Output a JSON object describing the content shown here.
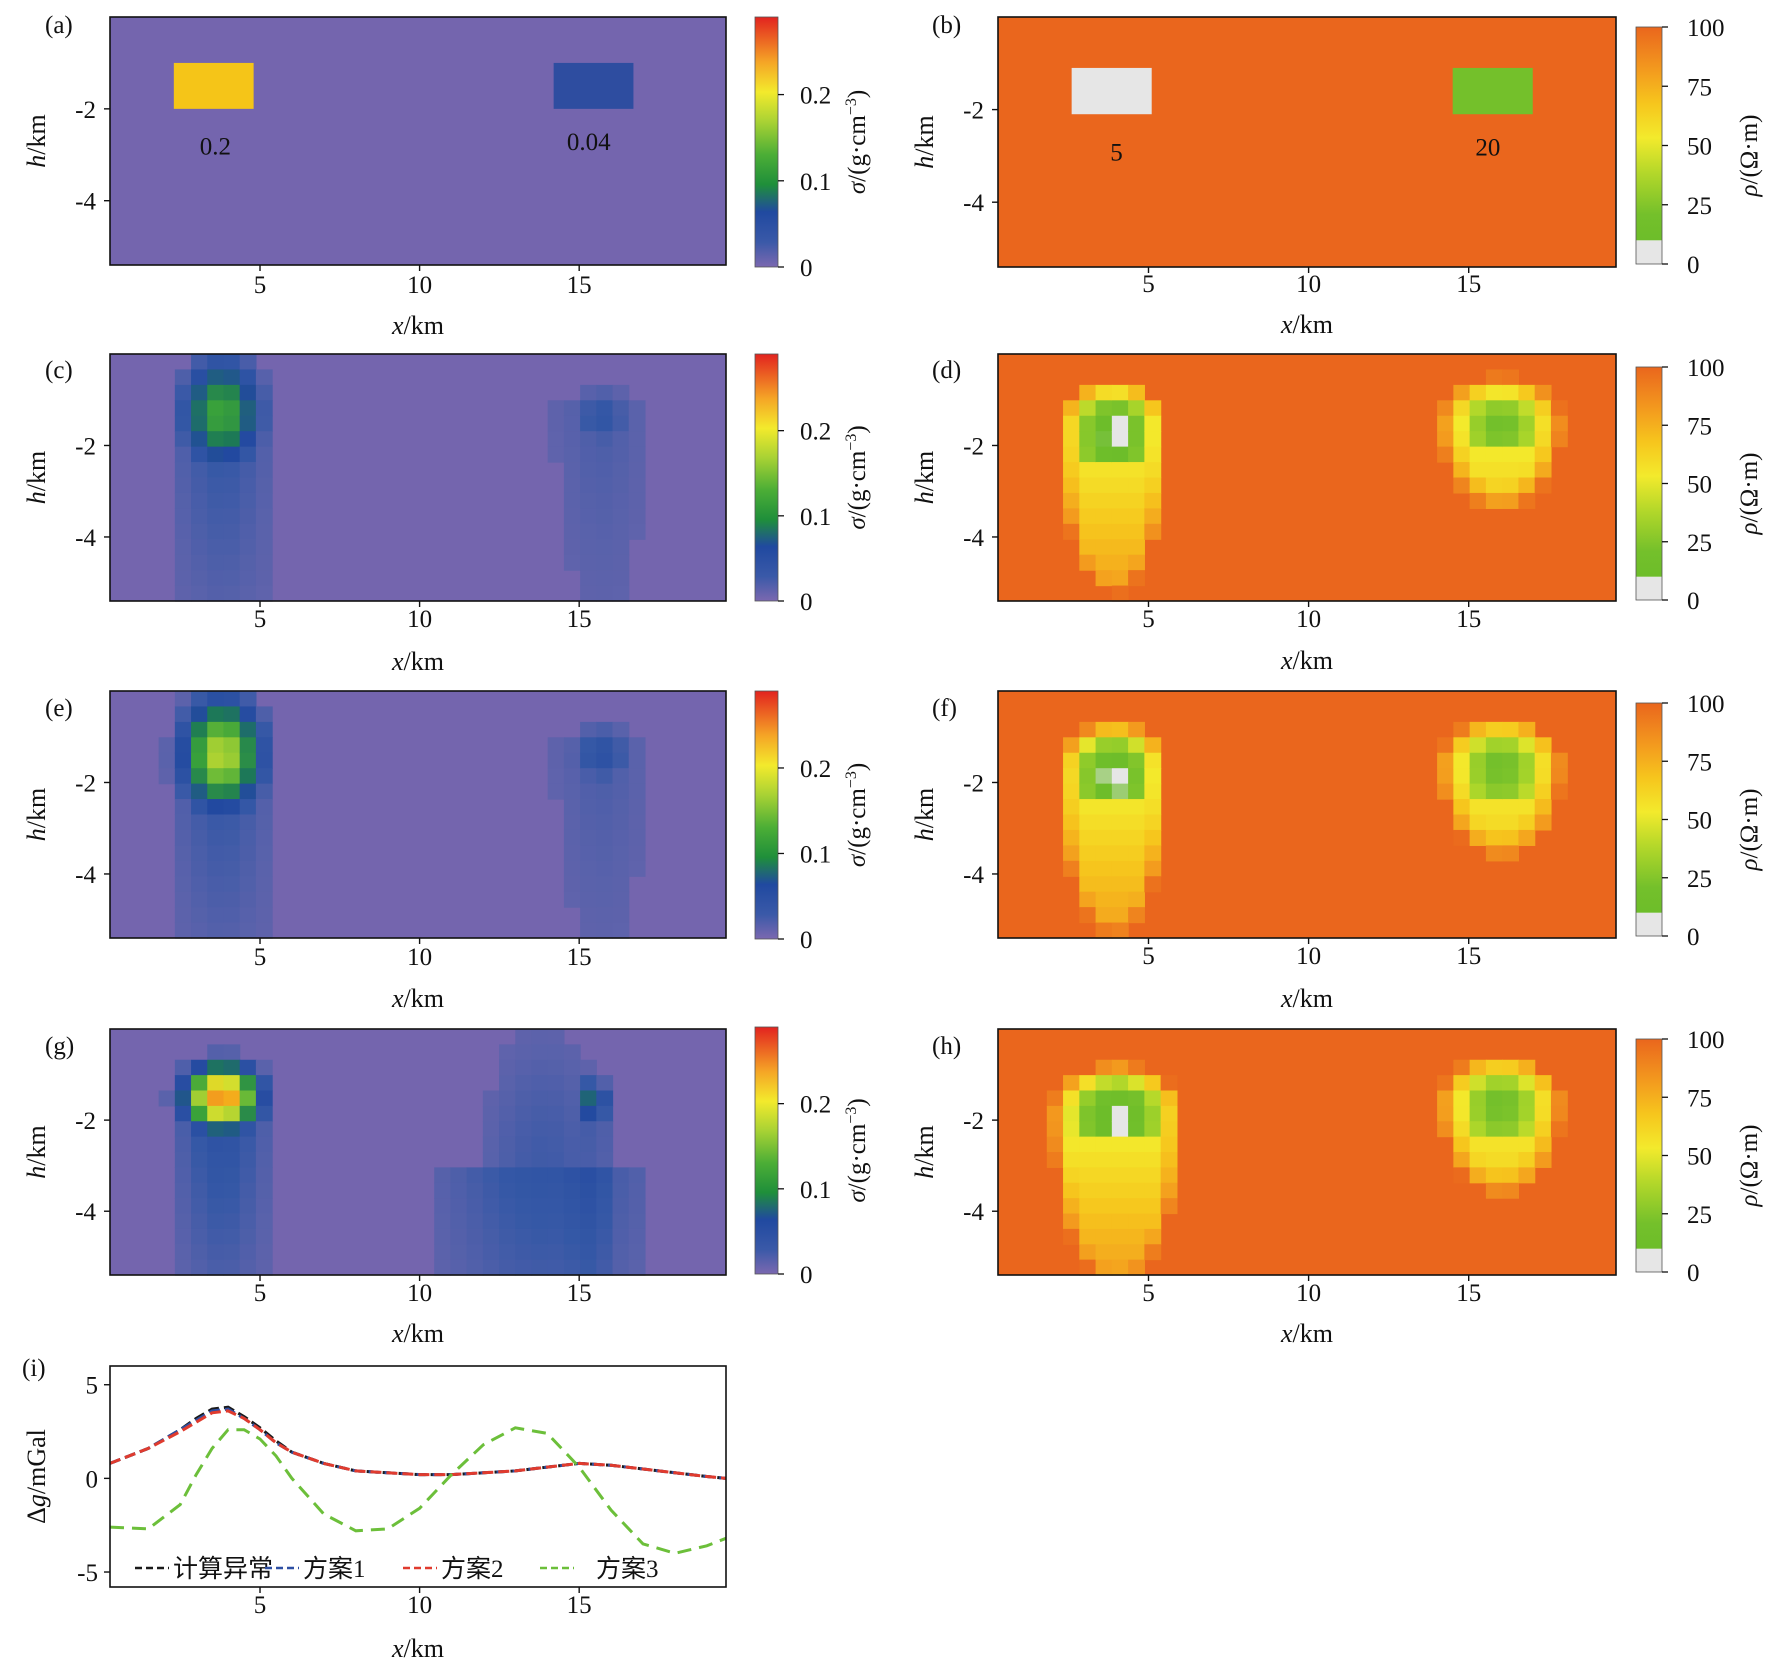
{
  "figure": {
    "panel_labels": [
      "(a)",
      "(b)",
      "(c)",
      "(d)",
      "(e)",
      "(f)",
      "(g)",
      "(h)",
      "(i)"
    ],
    "x_axis_label_italic": "x",
    "x_axis_label_unit": "/km",
    "depth_axis_label_italic": "h",
    "depth_axis_label_unit": "/km",
    "density_colorbar_label_italic": "σ",
    "density_colorbar_label_unit": "/(g·cm",
    "density_colorbar_label_exp": "−3",
    "density_colorbar_label_close": ")",
    "resistivity_colorbar_label_italic": "ρ",
    "resistivity_colorbar_label_unit": "/(Ω·m)",
    "gravity_axis_label_prefix": "Δ",
    "gravity_axis_label_italic": "g",
    "gravity_axis_label_unit": "/mGal",
    "x_ticks": [
      "5",
      "10",
      "15"
    ],
    "depth_ticks": [
      "-2",
      "-4"
    ],
    "density_colorbar_ticks": [
      "0",
      "0.1",
      "0.2"
    ],
    "resistivity_colorbar_ticks": [
      "0",
      "25",
      "50",
      "75",
      "100"
    ],
    "gravity_ticks": [
      "5",
      "0",
      "-5"
    ]
  },
  "chart_data": [
    {
      "panel": "(a)",
      "type": "heatmap",
      "quantity": "density",
      "xlim": [
        0.3,
        19.6
      ],
      "ylim": [
        -5.4,
        0
      ],
      "colorbar_range": [
        0,
        0.29
      ],
      "background_value": 0.01,
      "annotations": [
        {
          "text": "0.2",
          "x": 3.6,
          "y": -2.8
        },
        {
          "text": "0.04",
          "x": 15.3,
          "y": -2.7
        }
      ],
      "bodies": [
        {
          "x0": 2.3,
          "x1": 4.8,
          "y0": -1.0,
          "y1": -2.0,
          "value": 0.2
        },
        {
          "x0": 14.2,
          "x1": 16.7,
          "y0": -1.0,
          "y1": -2.0,
          "value": 0.04
        }
      ],
      "colors": {
        "background": "#7465ae",
        "body_left": "#f5c518",
        "body_right": "#2e4da0"
      }
    },
    {
      "panel": "(b)",
      "type": "heatmap",
      "quantity": "resistivity",
      "xlim": [
        0.3,
        19.6
      ],
      "ylim": [
        -5.4,
        0
      ],
      "colorbar_range": [
        0,
        100
      ],
      "background_value": 100,
      "annotations": [
        {
          "text": "5",
          "x": 4.0,
          "y": -2.9
        },
        {
          "text": "20",
          "x": 15.6,
          "y": -2.8
        }
      ],
      "bodies": [
        {
          "x0": 2.6,
          "x1": 5.1,
          "y0": -1.1,
          "y1": -2.1,
          "value": 5
        },
        {
          "x0": 14.5,
          "x1": 17.0,
          "y0": -1.1,
          "y1": -2.1,
          "value": 20
        }
      ],
      "colors": {
        "background": "#ea661d",
        "body_left": "#e6e6e6",
        "body_right": "#74c02b"
      }
    },
    {
      "panel": "(c)",
      "type": "heatmap",
      "quantity": "density",
      "xlim": [
        0.3,
        19.6
      ],
      "ylim": [
        -5.4,
        0
      ],
      "colorbar_range": [
        0,
        0.29
      ],
      "background_value": 0.01,
      "anomalies": [
        {
          "x": 3.8,
          "y": -1.3,
          "peak": 0.12,
          "sx": 1.3,
          "sy": 1.4,
          "tail": 0.03
        },
        {
          "x": 15.7,
          "y": -1.4,
          "peak": 0.04,
          "sx": 1.2,
          "sy": 0.9,
          "tail": 0.015
        }
      ],
      "colors": {
        "background": "#7465ae"
      }
    },
    {
      "panel": "(d)",
      "type": "heatmap",
      "quantity": "resistivity",
      "xlim": [
        0.3,
        19.6
      ],
      "ylim": [
        -5.4,
        0
      ],
      "colorbar_range": [
        0,
        100
      ],
      "background_value": 92,
      "anomalies": [
        {
          "x": 3.9,
          "y": -1.6,
          "min": 5,
          "w": 3.0,
          "h": 4.6
        },
        {
          "x": 16.0,
          "y": -1.5,
          "min": 22,
          "w": 3.4,
          "h": 2.4
        }
      ],
      "colors": {
        "background": "#ea661d"
      }
    },
    {
      "panel": "(e)",
      "type": "heatmap",
      "quantity": "density",
      "xlim": [
        0.3,
        19.6
      ],
      "ylim": [
        -5.4,
        0
      ],
      "colorbar_range": [
        0,
        0.29
      ],
      "background_value": 0.01,
      "anomalies": [
        {
          "x": 3.8,
          "y": -1.4,
          "peak": 0.17,
          "sx": 1.3,
          "sy": 1.4,
          "tail": 0.03
        },
        {
          "x": 15.7,
          "y": -1.4,
          "peak": 0.045,
          "sx": 1.2,
          "sy": 0.9,
          "tail": 0.015
        }
      ],
      "colors": {
        "background": "#7465ae"
      }
    },
    {
      "panel": "(f)",
      "type": "heatmap",
      "quantity": "resistivity",
      "xlim": [
        0.3,
        19.6
      ],
      "ylim": [
        -5.4,
        0
      ],
      "colorbar_range": [
        0,
        100
      ],
      "background_value": 92,
      "anomalies": [
        {
          "x": 3.9,
          "y": -1.7,
          "min": 5,
          "w": 3.0,
          "h": 4.6
        },
        {
          "x": 16.0,
          "y": -1.6,
          "min": 22,
          "w": 3.4,
          "h": 2.6
        }
      ],
      "colors": {
        "background": "#ea661d"
      }
    },
    {
      "panel": "(g)",
      "type": "heatmap",
      "quantity": "density",
      "xlim": [
        0.3,
        19.6
      ],
      "ylim": [
        -5.4,
        0
      ],
      "colorbar_range": [
        0,
        0.29
      ],
      "background_value": 0.01,
      "anomalies": [
        {
          "x": 3.8,
          "y": -1.5,
          "peak": 0.25,
          "sx": 1.2,
          "sy": 0.8,
          "tail": 0.04
        },
        {
          "x": 15.4,
          "y": -1.6,
          "peak": 0.08,
          "sx": 0.6,
          "sy": 0.6,
          "tail": 0.02
        },
        {
          "x": 13.9,
          "y": -3.2,
          "peak": 0.03,
          "sx": 2.7,
          "sy": 4.8,
          "tail": 0.03
        }
      ],
      "colors": {
        "background": "#7465ae"
      }
    },
    {
      "panel": "(h)",
      "type": "heatmap",
      "quantity": "resistivity",
      "xlim": [
        0.3,
        19.6
      ],
      "ylim": [
        -5.4,
        0
      ],
      "colorbar_range": [
        0,
        100
      ],
      "background_value": 92,
      "anomalies": [
        {
          "x": 4.0,
          "y": -1.8,
          "min": 5,
          "w": 3.6,
          "h": 4.8
        },
        {
          "x": 16.0,
          "y": -1.6,
          "min": 22,
          "w": 3.4,
          "h": 2.6
        }
      ],
      "colors": {
        "background": "#ea661d"
      }
    },
    {
      "panel": "(i)",
      "type": "line",
      "xlabel": "x/km",
      "ylabel": "Δg/mGal",
      "xlim": [
        0.3,
        19.6
      ],
      "ylim": [
        -5.8,
        6
      ],
      "x": [
        0.3,
        1.5,
        2.5,
        3.0,
        3.5,
        4.0,
        4.5,
        5.0,
        5.5,
        6.0,
        7.0,
        8.0,
        9.0,
        10.0,
        11.0,
        12.0,
        13.0,
        14.0,
        15.0,
        16.0,
        17.0,
        18.0,
        19.0,
        19.6
      ],
      "series": [
        {
          "name": "计算异常",
          "color": "#1a1a1a",
          "values": [
            0.8,
            1.6,
            2.6,
            3.2,
            3.7,
            3.8,
            3.3,
            2.7,
            2.0,
            1.4,
            0.8,
            0.4,
            0.3,
            0.2,
            0.2,
            0.3,
            0.4,
            0.6,
            0.8,
            0.7,
            0.5,
            0.3,
            0.1,
            0.0
          ]
        },
        {
          "name": "方案1",
          "color": "#2d4fa3",
          "values": [
            0.8,
            1.6,
            2.6,
            3.1,
            3.6,
            3.7,
            3.2,
            2.6,
            1.9,
            1.4,
            0.8,
            0.4,
            0.3,
            0.2,
            0.2,
            0.3,
            0.4,
            0.6,
            0.8,
            0.7,
            0.5,
            0.3,
            0.1,
            0.0
          ]
        },
        {
          "name": "方案2",
          "color": "#e03b2e",
          "values": [
            0.8,
            1.6,
            2.5,
            3.0,
            3.5,
            3.6,
            3.2,
            2.6,
            1.9,
            1.4,
            0.8,
            0.4,
            0.3,
            0.2,
            0.2,
            0.3,
            0.4,
            0.6,
            0.8,
            0.7,
            0.5,
            0.3,
            0.1,
            0.0
          ]
        },
        {
          "name": "方案3",
          "color": "#6cbf3a",
          "values": [
            -2.6,
            -2.7,
            -1.4,
            0.2,
            1.6,
            2.6,
            2.6,
            2.1,
            1.2,
            0.0,
            -1.9,
            -2.8,
            -2.7,
            -1.6,
            0.2,
            1.8,
            2.7,
            2.4,
            0.6,
            -1.7,
            -3.5,
            -4.0,
            -3.6,
            -3.2
          ]
        }
      ],
      "legend_position": "bottom"
    }
  ]
}
